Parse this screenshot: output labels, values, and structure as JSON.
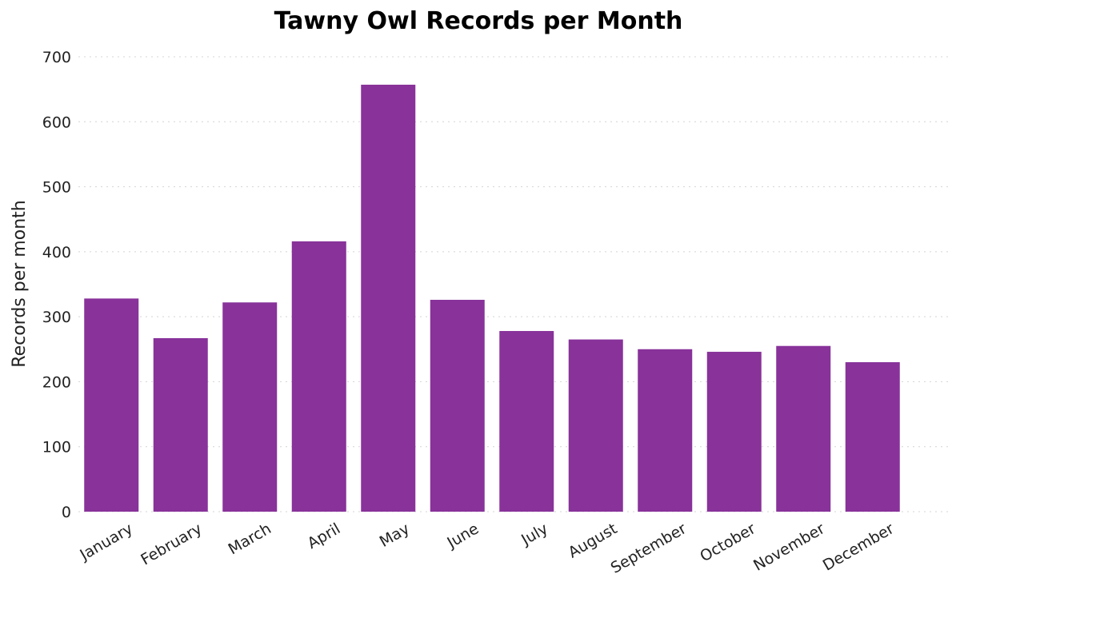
{
  "chart_data": {
    "type": "bar",
    "title": "Tawny Owl Records per Month",
    "xlabel": "",
    "ylabel": "Records per month",
    "categories": [
      "January",
      "February",
      "March",
      "April",
      "May",
      "June",
      "July",
      "August",
      "September",
      "October",
      "November",
      "December"
    ],
    "values": [
      328,
      267,
      322,
      416,
      657,
      326,
      278,
      265,
      250,
      246,
      255,
      230
    ],
    "ylim": [
      0,
      700
    ],
    "yticks": [
      "0",
      "100",
      "200",
      "300",
      "400",
      "500",
      "600",
      "700"
    ],
    "grid": true,
    "bar_color": "#88329a"
  }
}
